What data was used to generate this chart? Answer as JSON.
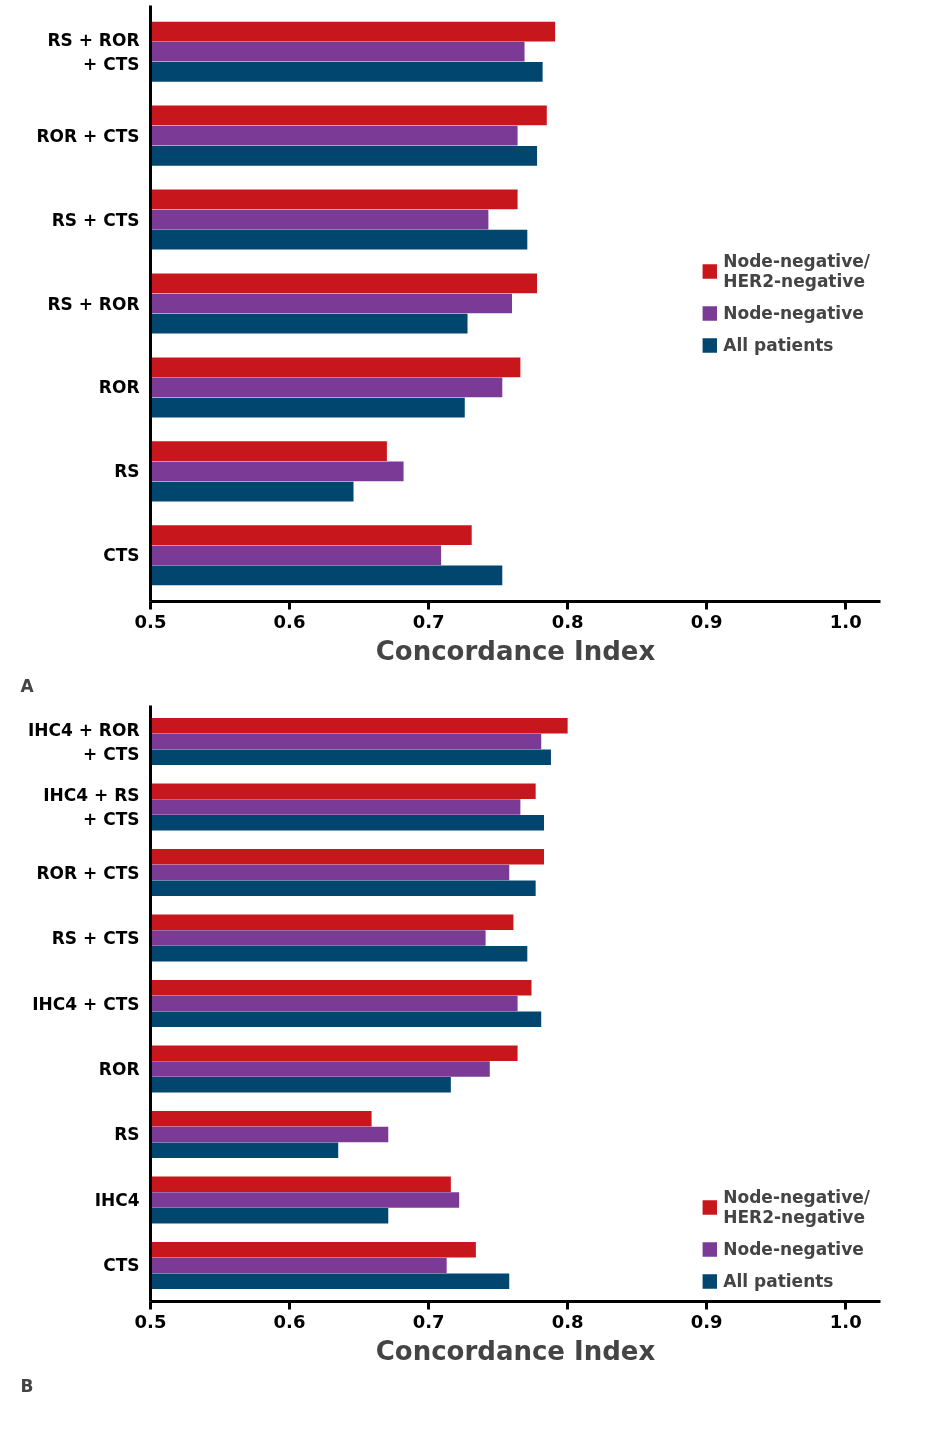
{
  "chart_data": [
    {
      "type": "bar",
      "orientation": "horizontal",
      "xlabel": "Concordance Index",
      "annotations": [
        "A"
      ],
      "categories": [
        "RS + ROR\n+ CTS",
        "ROR + CTS",
        "RS + CTS",
        "RS + ROR",
        "ROR",
        "RS",
        "CTS"
      ],
      "series": [
        {
          "name": "Node-negative/\nHER2-negative",
          "color": "#c8161d",
          "values": [
            0.791,
            0.785,
            0.764,
            0.778,
            0.766,
            0.67,
            0.731
          ]
        },
        {
          "name": "Node-negative",
          "color": "#7b3a96",
          "values": [
            0.769,
            0.764,
            0.743,
            0.76,
            0.753,
            0.682,
            0.709
          ]
        },
        {
          "name": "All patients",
          "color": "#00466e",
          "values": [
            0.782,
            0.778,
            0.771,
            0.728,
            0.726,
            0.646,
            0.753
          ]
        }
      ],
      "xlim": [
        0.5,
        1.025
      ],
      "xticks": [
        0.5,
        0.6,
        0.7,
        0.8,
        0.9,
        {
          "value": 1.0,
          "label": "1.0"
        }
      ],
      "grid": false,
      "legend": "right"
    },
    {
      "type": "bar",
      "orientation": "horizontal",
      "xlabel": "Concordance Index",
      "annotations": [
        "B"
      ],
      "categories": [
        "IHC4 + ROR\n+ CTS",
        "IHC4 + RS\n+ CTS",
        "ROR + CTS",
        "RS + CTS",
        "IHC4 + CTS",
        "ROR",
        "RS",
        "IHC4",
        "CTS"
      ],
      "series": [
        {
          "name": "Node-negative/\nHER2-negative",
          "color": "#c8161d",
          "values": [
            0.8,
            0.777,
            0.783,
            0.761,
            0.774,
            0.764,
            0.659,
            0.716,
            0.734
          ]
        },
        {
          "name": "Node-negative",
          "color": "#7b3a96",
          "values": [
            0.781,
            0.766,
            0.758,
            0.741,
            0.764,
            0.744,
            0.671,
            0.722,
            0.713
          ]
        },
        {
          "name": "All patients",
          "color": "#00466e",
          "values": [
            0.788,
            0.783,
            0.777,
            0.771,
            0.781,
            0.716,
            0.635,
            0.671,
            0.758
          ]
        }
      ],
      "xlim": [
        0.5,
        1.025
      ],
      "xticks": [
        0.5,
        0.6,
        0.7,
        0.8,
        0.9,
        {
          "value": 1.0,
          "label": "1.0"
        }
      ],
      "grid": false,
      "legend": "bottom right"
    }
  ]
}
